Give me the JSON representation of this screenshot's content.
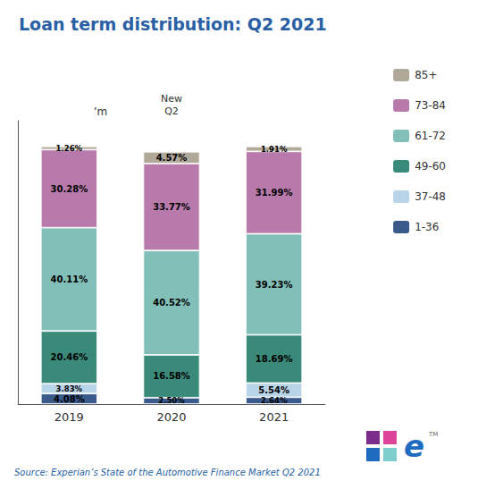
{
  "chart_data": {
    "type": "bar",
    "title": "Loan term distribution: Q2 2021",
    "categories": [
      "2019",
      "2020",
      "2021"
    ],
    "stacked": true,
    "data_labels": true,
    "grid": false,
    "legend": "right",
    "tick_labels": "x",
    "ylim": [
      0,
      110
    ],
    "yticks": [],
    "series": [
      {
        "name": "1-36",
        "color": "#3a5a8c",
        "values": [
          4.08,
          2.5,
          2.64
        ],
        "value_labels": [
          "4.08%",
          "2.50%",
          "2.64%"
        ]
      },
      {
        "name": "37-48",
        "color": "#b8d4e8",
        "values": [
          3.83,
          0.0,
          5.54
        ],
        "value_labels": [
          "3.83%",
          null,
          "5.54%"
        ]
      },
      {
        "name": "49-60",
        "color": "#3a8a7a",
        "values": [
          20.46,
          16.58,
          18.69
        ],
        "value_labels": [
          "20.46%",
          "16.58%",
          "18.69%"
        ]
      },
      {
        "name": "61-72",
        "color": "#82bfb8",
        "values": [
          40.11,
          40.52,
          39.23
        ],
        "value_labels": [
          "40.11%",
          "40.52%",
          "39.23%"
        ]
      },
      {
        "name": "73-84",
        "color": "#b87aaa",
        "values": [
          30.28,
          33.77,
          31.99
        ],
        "value_labels": [
          "30.28%",
          "33.77%",
          "31.99%"
        ]
      },
      {
        "name": "85+",
        "color": "#b0a898",
        "values": [
          1.26,
          4.57,
          1.91
        ],
        "value_labels": [
          "1.26%",
          "4.57%",
          "1.91%"
        ]
      }
    ],
    "annotations": [
      "’m",
      "New\nQ2",
      "Source: Experian’s State of the Automotive Finance Market Q2 2021",
      "e",
      "TM"
    ]
  }
}
